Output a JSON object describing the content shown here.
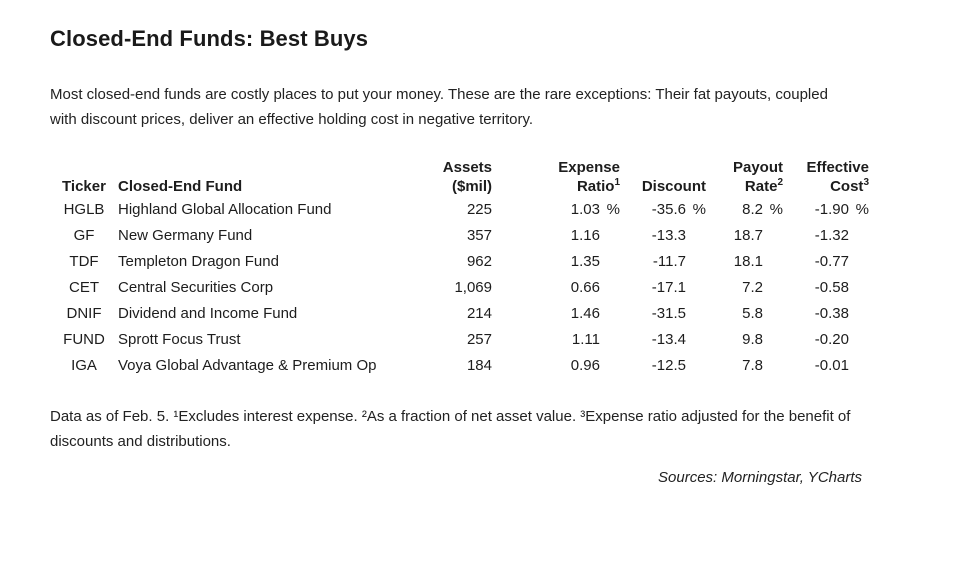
{
  "page": {
    "title": "Closed-End Funds: Best Buys",
    "intro": "Most closed-end funds are costly places to put your money. These are the rare exceptions: Their fat payouts, coupled with discount prices, deliver an effective holding cost in negative territory.",
    "footnote": "Data as of Feb. 5. ¹Excludes interest expense. ²As a fraction of net asset value. ³Expense ratio adjusted for the benefit of discounts and distributions.",
    "sources": "Sources: Morningstar, YCharts"
  },
  "table": {
    "columns": {
      "ticker": "Ticker",
      "fund": "Closed-End Fund",
      "assets_line1": "Assets",
      "assets_line2": "($mil)",
      "expense_line1": "Expense",
      "expense_line2": "Ratio",
      "expense_sup": "1",
      "discount": "Discount",
      "payout_line1": "Payout",
      "payout_line2": "Rate",
      "payout_sup": "2",
      "effective_line1": "Effective",
      "effective_line2": "Cost",
      "effective_sup": "3"
    },
    "percent_sign": "%",
    "rows": [
      {
        "ticker": "HGLB",
        "fund": "Highland Global Allocation Fund",
        "assets": "225",
        "expense": "1.03",
        "discount": "-35.6",
        "payout": "8.2",
        "effective": "-1.90",
        "show_percent": true
      },
      {
        "ticker": "GF",
        "fund": "New Germany Fund",
        "assets": "357",
        "expense": "1.16",
        "discount": "-13.3",
        "payout": "18.7",
        "effective": "-1.32",
        "show_percent": false
      },
      {
        "ticker": "TDF",
        "fund": "Templeton Dragon Fund",
        "assets": "962",
        "expense": "1.35",
        "discount": "-11.7",
        "payout": "18.1",
        "effective": "-0.77",
        "show_percent": false
      },
      {
        "ticker": "CET",
        "fund": "Central Securities Corp",
        "assets": "1,069",
        "expense": "0.66",
        "discount": "-17.1",
        "payout": "7.2",
        "effective": "-0.58",
        "show_percent": false
      },
      {
        "ticker": "DNIF",
        "fund": "Dividend and Income Fund",
        "assets": "214",
        "expense": "1.46",
        "discount": "-31.5",
        "payout": "5.8",
        "effective": "-0.38",
        "show_percent": false
      },
      {
        "ticker": "FUND",
        "fund": "Sprott Focus Trust",
        "assets": "257",
        "expense": "1.11",
        "discount": "-13.4",
        "payout": "9.8",
        "effective": "-0.20",
        "show_percent": false
      },
      {
        "ticker": "IGA",
        "fund": "Voya Global Advantage & Premium Op",
        "assets": "184",
        "expense": "0.96",
        "discount": "-12.5",
        "payout": "7.8",
        "effective": "-0.01",
        "show_percent": false
      }
    ]
  },
  "chart_data": {
    "type": "table",
    "title": "Closed-End Funds: Best Buys",
    "columns": [
      "Ticker",
      "Closed-End Fund",
      "Assets ($mil)",
      "Expense Ratio (%)",
      "Discount (%)",
      "Payout Rate (%)",
      "Effective Cost (%)"
    ],
    "rows": [
      [
        "HGLB",
        "Highland Global Allocation Fund",
        225,
        1.03,
        -35.6,
        8.2,
        -1.9
      ],
      [
        "GF",
        "New Germany Fund",
        357,
        1.16,
        -13.3,
        18.7,
        -1.32
      ],
      [
        "TDF",
        "Templeton Dragon Fund",
        962,
        1.35,
        -11.7,
        18.1,
        -0.77
      ],
      [
        "CET",
        "Central Securities Corp",
        1069,
        0.66,
        -17.1,
        7.2,
        -0.58
      ],
      [
        "DNIF",
        "Dividend and Income Fund",
        214,
        1.46,
        -31.5,
        5.8,
        -0.38
      ],
      [
        "FUND",
        "Sprott Focus Trust",
        257,
        1.11,
        -13.4,
        9.8,
        -0.2
      ],
      [
        "IGA",
        "Voya Global Advantage & Premium Op",
        184,
        0.96,
        -12.5,
        7.8,
        -0.01
      ]
    ],
    "notes": "Data as of Feb. 5. 1: Excludes interest expense. 2: As a fraction of net asset value. 3: Expense ratio adjusted for the benefit of discounts and distributions.",
    "sources": "Morningstar, YCharts"
  }
}
